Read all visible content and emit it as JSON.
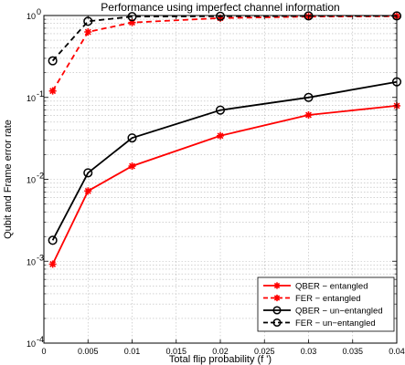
{
  "chart_data": {
    "type": "line",
    "title": "Performance using imperfect channel information",
    "xlabel": "Total flip probability (f ')",
    "ylabel": "Qubit and Frame error rate",
    "xlim": [
      0,
      0.04
    ],
    "ylim": [
      0.0001,
      1
    ],
    "yscale": "log",
    "grid": true,
    "legend_position": "bottom-right",
    "x_ticks": [
      0,
      0.005,
      0.01,
      0.015,
      0.02,
      0.025,
      0.03,
      0.035,
      0.04
    ],
    "x_tick_labels": [
      "0",
      "0.005",
      "0.01",
      "0.015",
      "0.02",
      "0.025",
      "0.03",
      "0.035",
      "0.04"
    ],
    "y_ticks": [
      0.0001,
      0.001,
      0.01,
      0.1,
      1
    ],
    "y_tick_labels": [
      {
        "base": "10",
        "exp": "-4"
      },
      {
        "base": "10",
        "exp": "-3"
      },
      {
        "base": "10",
        "exp": "-2"
      },
      {
        "base": "10",
        "exp": "-1"
      },
      {
        "base": "10",
        "exp": "0"
      }
    ],
    "series": [
      {
        "name": "QBER − entangled",
        "color": "#ff0000",
        "dash": "solid",
        "marker": "star",
        "x": [
          0.001,
          0.005,
          0.01,
          0.02,
          0.03,
          0.04
        ],
        "y": [
          0.00092,
          0.0072,
          0.0145,
          0.034,
          0.061,
          0.079
        ]
      },
      {
        "name": "FER − entangled",
        "color": "#ff0000",
        "dash": "dashed",
        "marker": "star",
        "x": [
          0.001,
          0.005,
          0.01,
          0.02,
          0.03,
          0.04
        ],
        "y": [
          0.12,
          0.63,
          0.82,
          0.93,
          0.97,
          0.98
        ]
      },
      {
        "name": "QBER − un−entangled",
        "color": "#000000",
        "dash": "solid",
        "marker": "circle",
        "x": [
          0.001,
          0.005,
          0.01,
          0.02,
          0.03,
          0.04
        ],
        "y": [
          0.0018,
          0.012,
          0.032,
          0.07,
          0.1,
          0.155
        ]
      },
      {
        "name": "FER − un−entangled",
        "color": "#000000",
        "dash": "dashed",
        "marker": "circle",
        "x": [
          0.001,
          0.005,
          0.01,
          0.02,
          0.03,
          0.04
        ],
        "y": [
          0.28,
          0.85,
          0.97,
          0.98,
          0.99,
          0.99
        ]
      }
    ]
  }
}
